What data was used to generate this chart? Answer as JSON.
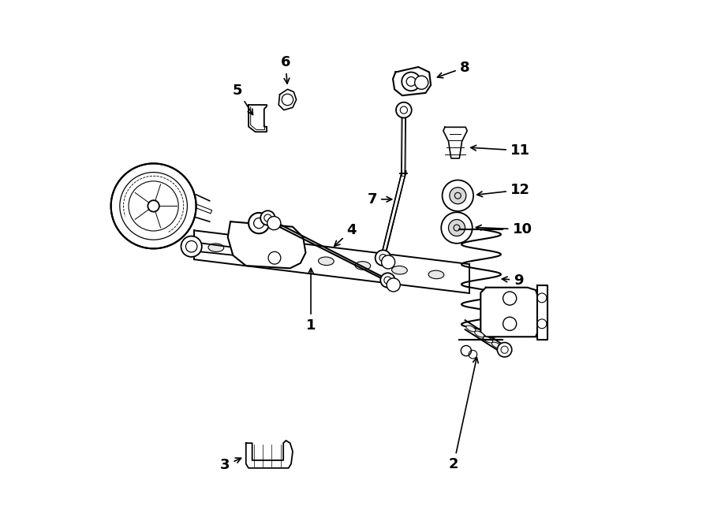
{
  "title": "",
  "background_color": "#ffffff",
  "line_color": "#000000",
  "fig_width": 9.0,
  "fig_height": 6.61,
  "dpi": 100
}
